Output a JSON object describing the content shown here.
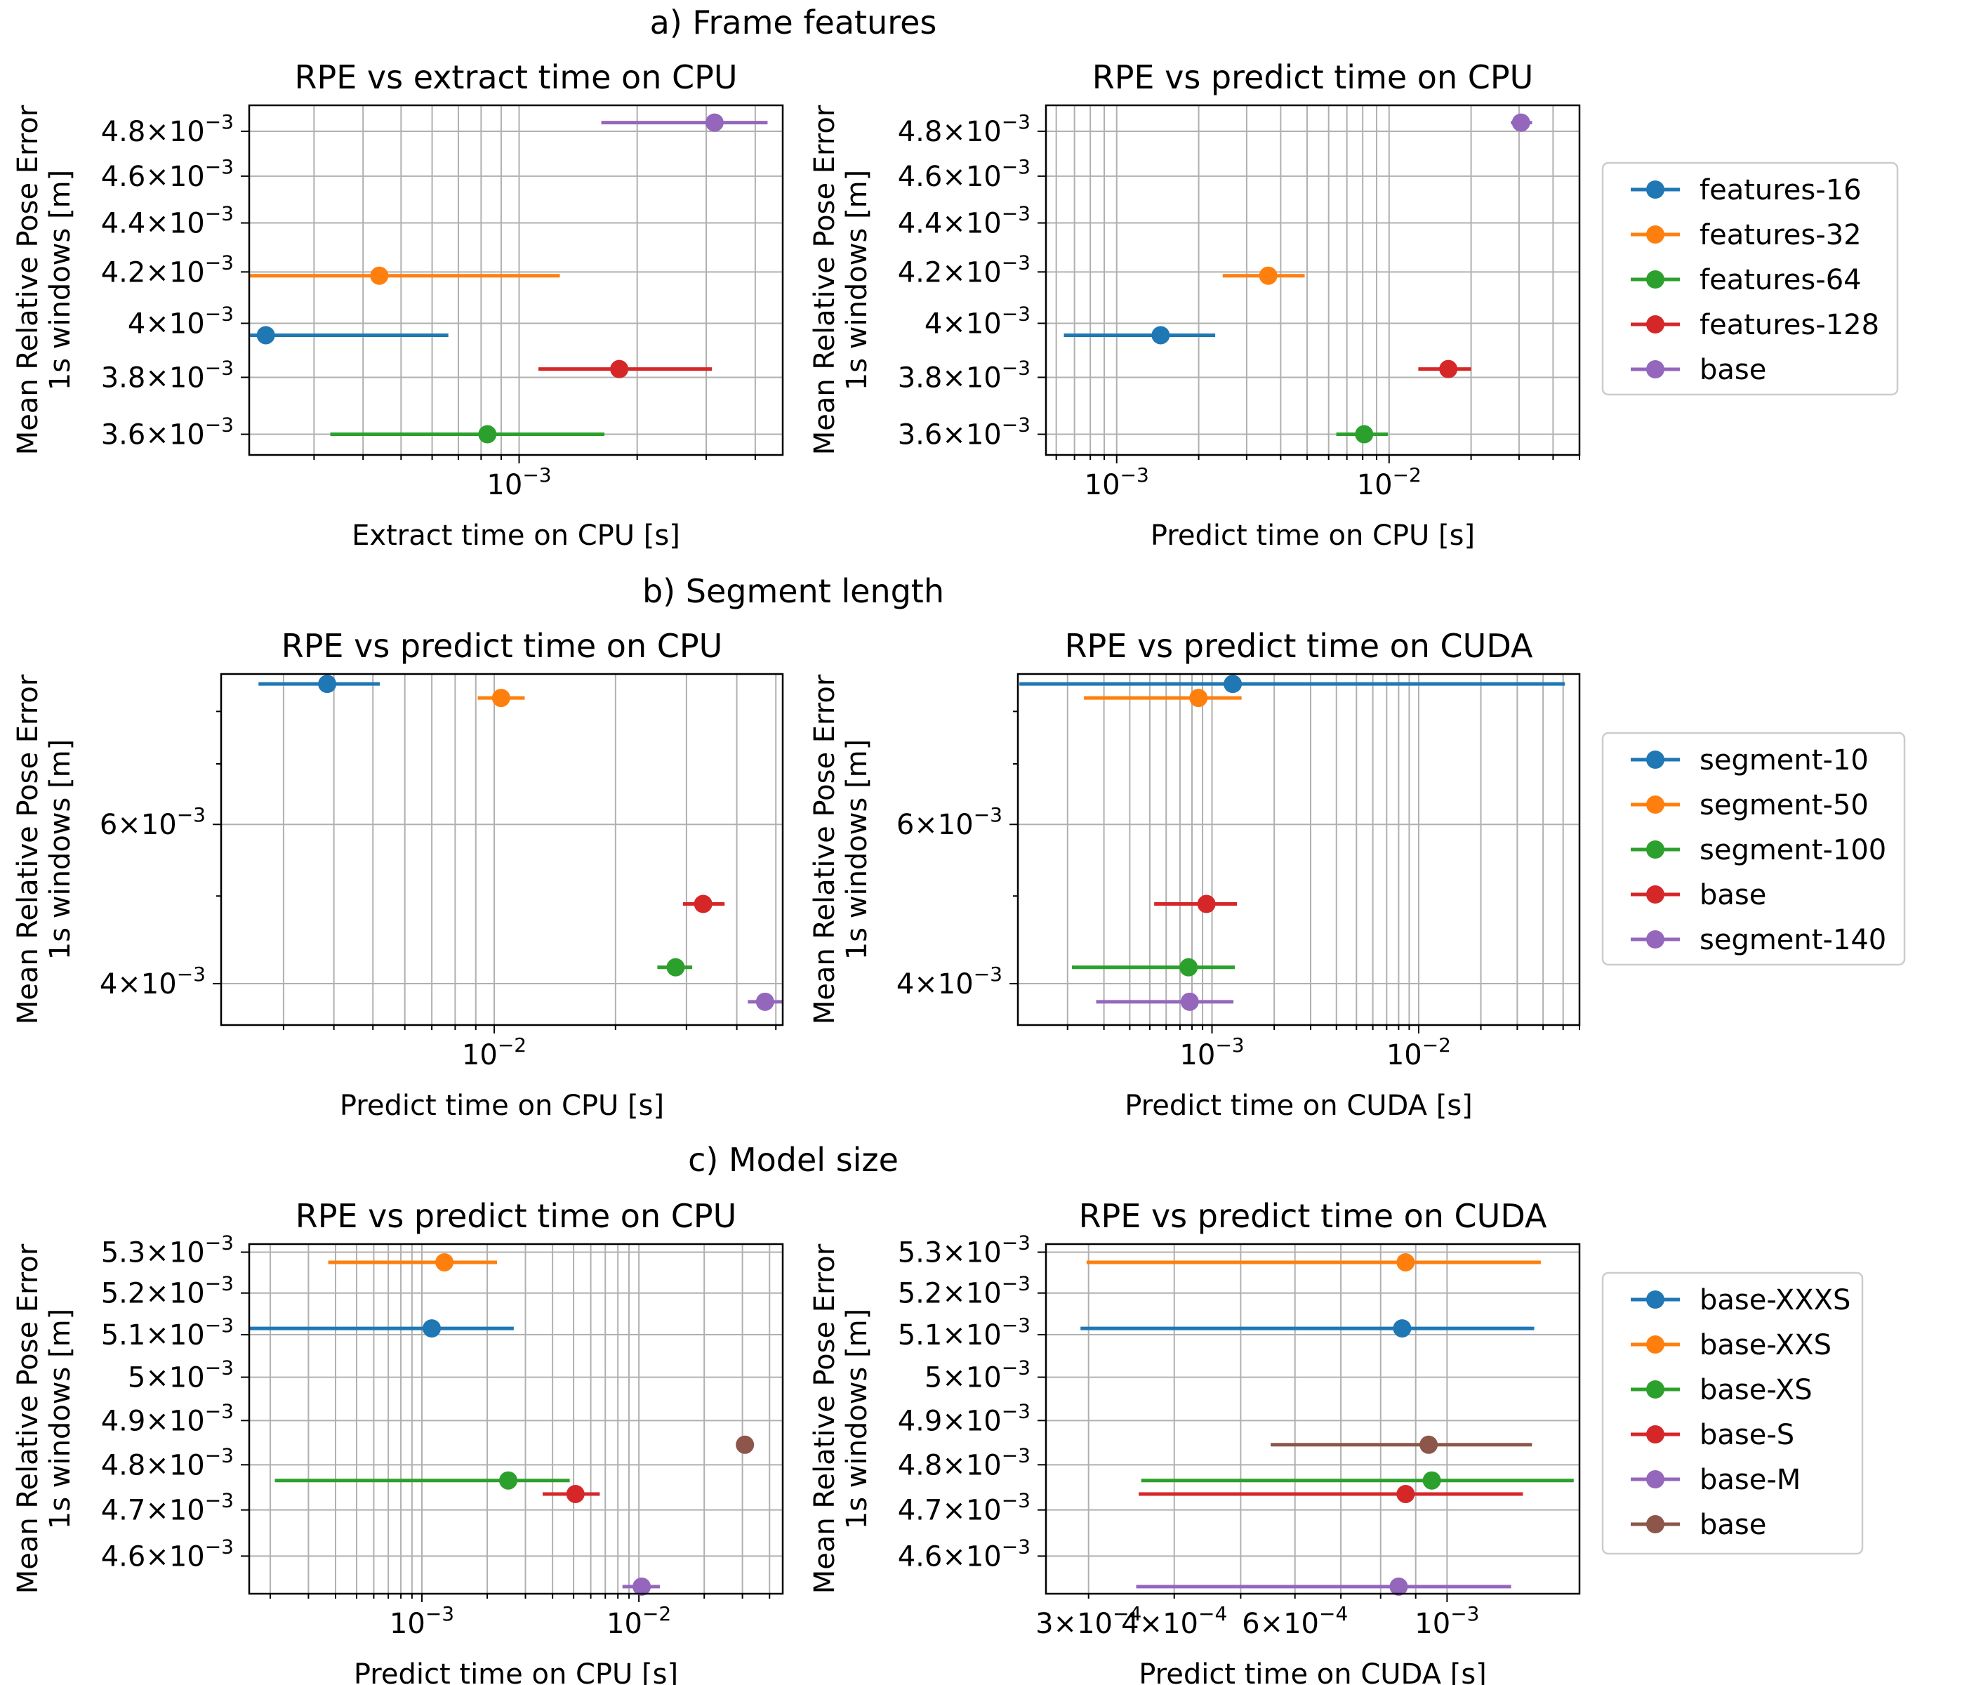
{
  "sections": [
    {
      "title": "a) Frame features"
    },
    {
      "title": "b) Segment length"
    },
    {
      "title": "c) Model size"
    }
  ],
  "colors": {
    "blue": "#1f77b4",
    "orange": "#ff7f0e",
    "green": "#2ca02c",
    "red": "#d62728",
    "purple": "#9467bd",
    "brown": "#8c564b",
    "grid": "#b0b0b0"
  },
  "chart_data": [
    {
      "id": "a1",
      "type": "scatter",
      "title": "RPE vs extract time on CPU",
      "xlabel": "Extract time on CPU [s]",
      "ylabel": [
        "Mean Relative Pose Error",
        "1s windows [m]"
      ],
      "xscale": "log",
      "yscale": "log",
      "xlim": [
        0.000205,
        0.0047
      ],
      "ylim": [
        0.00353,
        0.00492
      ],
      "grid": true,
      "xticks": [
        {
          "value": 0.001,
          "label": "10",
          "exp": "−3"
        }
      ],
      "yticks": [
        {
          "value": 0.0036,
          "label": "3.6×10",
          "exp": "−3"
        },
        {
          "value": 0.0038,
          "label": "3.8×10",
          "exp": "−3"
        },
        {
          "value": 0.004,
          "label": "4×10",
          "exp": "−3"
        },
        {
          "value": 0.0042,
          "label": "4.2×10",
          "exp": "−3"
        },
        {
          "value": 0.0044,
          "label": "4.4×10",
          "exp": "−3"
        },
        {
          "value": 0.0046,
          "label": "4.6×10",
          "exp": "−3"
        },
        {
          "value": 0.0048,
          "label": "4.8×10",
          "exp": "−3"
        }
      ],
      "series": [
        {
          "name": "features-16",
          "color": "#1f77b4",
          "x": 0.000226,
          "xmin": 0.000206,
          "xmax": 0.00066,
          "y": 0.003955
        },
        {
          "name": "features-32",
          "color": "#ff7f0e",
          "x": 0.00044,
          "xmin": 0.000205,
          "xmax": 0.00127,
          "y": 0.004185
        },
        {
          "name": "features-64",
          "color": "#2ca02c",
          "x": 0.00083,
          "xmin": 0.00033,
          "xmax": 0.00165,
          "y": 0.0036
        },
        {
          "name": "features-128",
          "color": "#d62728",
          "x": 0.0018,
          "xmin": 0.00112,
          "xmax": 0.0031,
          "y": 0.00383
        },
        {
          "name": "base",
          "color": "#9467bd",
          "x": 0.00315,
          "xmin": 0.00162,
          "xmax": 0.0043,
          "y": 0.00484
        }
      ]
    },
    {
      "id": "a2",
      "type": "scatter",
      "title": "RPE vs predict time on CPU",
      "xlabel": "Predict time on CPU [s]",
      "ylabel": [
        "Mean Relative Pose Error",
        "1s windows [m]"
      ],
      "xscale": "log",
      "yscale": "log",
      "xlim": [
        0.00055,
        0.05
      ],
      "ylim": [
        0.00353,
        0.00492
      ],
      "grid": true,
      "xticks": [
        {
          "value": 0.001,
          "label": "10",
          "exp": "−3"
        },
        {
          "value": 0.01,
          "label": "10",
          "exp": "−2"
        }
      ],
      "yticks": [
        {
          "value": 0.0036,
          "label": "3.6×10",
          "exp": "−3"
        },
        {
          "value": 0.0038,
          "label": "3.8×10",
          "exp": "−3"
        },
        {
          "value": 0.004,
          "label": "4×10",
          "exp": "−3"
        },
        {
          "value": 0.0042,
          "label": "4.2×10",
          "exp": "−3"
        },
        {
          "value": 0.0044,
          "label": "4.4×10",
          "exp": "−3"
        },
        {
          "value": 0.0046,
          "label": "4.6×10",
          "exp": "−3"
        },
        {
          "value": 0.0048,
          "label": "4.8×10",
          "exp": "−3"
        }
      ],
      "series": [
        {
          "name": "features-16",
          "color": "#1f77b4",
          "x": 0.00145,
          "xmin": 0.00064,
          "xmax": 0.0023,
          "y": 0.003955
        },
        {
          "name": "features-32",
          "color": "#ff7f0e",
          "x": 0.0036,
          "xmin": 0.00245,
          "xmax": 0.0049,
          "y": 0.004185
        },
        {
          "name": "features-64",
          "color": "#2ca02c",
          "x": 0.0081,
          "xmin": 0.0064,
          "xmax": 0.0099,
          "y": 0.0036
        },
        {
          "name": "features-128",
          "color": "#d62728",
          "x": 0.0165,
          "xmin": 0.0128,
          "xmax": 0.02,
          "y": 0.00383
        },
        {
          "name": "base",
          "color": "#9467bd",
          "x": 0.0305,
          "xmin": 0.028,
          "xmax": 0.0335,
          "y": 0.00484
        }
      ]
    },
    {
      "id": "b1",
      "type": "scatter",
      "title": "RPE vs predict time on CPU",
      "xlabel": "Predict time on CPU [s]",
      "ylabel": [
        "Mean Relative Pose Error",
        "1s windows [m]"
      ],
      "xscale": "log",
      "yscale": "log",
      "xlim": [
        0.0021,
        0.052
      ],
      "ylim": [
        0.0036,
        0.0088
      ],
      "grid": true,
      "xticks": [
        {
          "value": 0.01,
          "label": "10",
          "exp": "−2"
        }
      ],
      "yticks": [
        {
          "value": 0.004,
          "label": "4×10",
          "exp": "−3"
        },
        {
          "value": 0.006,
          "label": "6×10",
          "exp": "−3"
        }
      ],
      "series": [
        {
          "name": "segment-10",
          "color": "#1f77b4",
          "x": 0.00385,
          "xmin": 0.0026,
          "xmax": 0.0052,
          "y": 0.00858
        },
        {
          "name": "segment-50",
          "color": "#ff7f0e",
          "x": 0.0104,
          "xmin": 0.0091,
          "xmax": 0.0119,
          "y": 0.00828
        },
        {
          "name": "segment-100",
          "color": "#2ca02c",
          "x": 0.0282,
          "xmin": 0.0254,
          "xmax": 0.031,
          "y": 0.00417
        },
        {
          "name": "base",
          "color": "#d62728",
          "x": 0.033,
          "xmin": 0.0294,
          "xmax": 0.0373,
          "y": 0.0049
        },
        {
          "name": "segment-140",
          "color": "#9467bd",
          "x": 0.047,
          "xmin": 0.0426,
          "xmax": 0.0518,
          "y": 0.00382
        }
      ]
    },
    {
      "id": "b2",
      "type": "scatter",
      "title": "RPE vs predict time on CUDA",
      "xlabel": "Predict time on CUDA [s]",
      "ylabel": [
        "Mean Relative Pose Error",
        "1s windows [m]"
      ],
      "xscale": "log",
      "yscale": "log",
      "xlim": [
        0.000115,
        0.06
      ],
      "ylim": [
        0.0036,
        0.0088
      ],
      "grid": true,
      "xticks": [
        {
          "value": 0.001,
          "label": "10",
          "exp": "−3"
        },
        {
          "value": 0.01,
          "label": "10",
          "exp": "−2"
        }
      ],
      "yticks": [
        {
          "value": 0.004,
          "label": "4×10",
          "exp": "−3"
        },
        {
          "value": 0.006,
          "label": "6×10",
          "exp": "−3"
        }
      ],
      "series": [
        {
          "name": "segment-10",
          "color": "#1f77b4",
          "x": 0.00126,
          "xmin": 0.000117,
          "xmax": 0.051,
          "y": 0.00858
        },
        {
          "name": "segment-50",
          "color": "#ff7f0e",
          "x": 0.00086,
          "xmin": 0.00024,
          "xmax": 0.00139,
          "y": 0.00828
        },
        {
          "name": "segment-100",
          "color": "#2ca02c",
          "x": 0.00077,
          "xmin": 0.00021,
          "xmax": 0.00129,
          "y": 0.00417
        },
        {
          "name": "base",
          "color": "#d62728",
          "x": 0.00094,
          "xmin": 0.000525,
          "xmax": 0.00132,
          "y": 0.0049
        },
        {
          "name": "segment-140",
          "color": "#9467bd",
          "x": 0.00078,
          "xmin": 0.000275,
          "xmax": 0.00127,
          "y": 0.00382
        }
      ]
    },
    {
      "id": "c1",
      "type": "scatter",
      "title": "RPE vs predict time on CPU",
      "xlabel": "Predict time on CPU [s]",
      "ylabel": [
        "Mean Relative Pose Error",
        "1s windows [m]"
      ],
      "xscale": "log",
      "yscale": "log",
      "xlim": [
        0.00016,
        0.046
      ],
      "ylim": [
        0.00452,
        0.00532
      ],
      "grid": true,
      "xticks": [
        {
          "value": 0.001,
          "label": "10",
          "exp": "−3"
        },
        {
          "value": 0.01,
          "label": "10",
          "exp": "−2"
        }
      ],
      "yticks": [
        {
          "value": 0.0046,
          "label": "4.6×10",
          "exp": "−3"
        },
        {
          "value": 0.0047,
          "label": "4.7×10",
          "exp": "−3"
        },
        {
          "value": 0.0048,
          "label": "4.8×10",
          "exp": "−3"
        },
        {
          "value": 0.0049,
          "label": "4.9×10",
          "exp": "−3"
        },
        {
          "value": 0.005,
          "label": "5×10",
          "exp": "−3"
        },
        {
          "value": 0.0051,
          "label": "5.1×10",
          "exp": "−3"
        },
        {
          "value": 0.0052,
          "label": "5.2×10",
          "exp": "−3"
        },
        {
          "value": 0.0053,
          "label": "5.3×10",
          "exp": "−3"
        }
      ],
      "series": [
        {
          "name": "base-XXXS",
          "color": "#1f77b4",
          "x": 0.00111,
          "xmin": 0.00016,
          "xmax": 0.00265,
          "y": 0.005115
        },
        {
          "name": "base-XXS",
          "color": "#ff7f0e",
          "x": 0.00127,
          "xmin": 0.00037,
          "xmax": 0.00222,
          "y": 0.005275
        },
        {
          "name": "base-XS",
          "color": "#2ca02c",
          "x": 0.0025,
          "xmin": 0.00021,
          "xmax": 0.0048,
          "y": 0.004765
        },
        {
          "name": "base-S",
          "color": "#d62728",
          "x": 0.0051,
          "xmin": 0.0036,
          "xmax": 0.0066,
          "y": 0.004735
        },
        {
          "name": "base-M",
          "color": "#9467bd",
          "x": 0.0103,
          "xmin": 0.0084,
          "xmax": 0.0125,
          "y": 0.004535
        },
        {
          "name": "base",
          "color": "#8c564b",
          "x": 0.0308,
          "xmin": 0.0286,
          "xmax": 0.033,
          "y": 0.004845
        }
      ]
    },
    {
      "id": "c2",
      "type": "scatter",
      "title": "RPE vs predict time on CUDA",
      "xlabel": "Predict time on CUDA [s]",
      "ylabel": [
        "Mean Relative Pose Error",
        "1s windows [m]"
      ],
      "xscale": "log",
      "yscale": "log",
      "xlim": [
        0.00026,
        0.00156
      ],
      "ylim": [
        0.00452,
        0.00532
      ],
      "grid": true,
      "xticks": [
        {
          "value": 0.0003,
          "label": "3×10",
          "exp": "−4"
        },
        {
          "value": 0.0004,
          "label": "4×10",
          "exp": "−4"
        },
        {
          "value": 0.0006,
          "label": "6×10",
          "exp": "−4"
        },
        {
          "value": 0.001,
          "label": "10",
          "exp": "−3"
        }
      ],
      "yticks": [
        {
          "value": 0.0046,
          "label": "4.6×10",
          "exp": "−3"
        },
        {
          "value": 0.0047,
          "label": "4.7×10",
          "exp": "−3"
        },
        {
          "value": 0.0048,
          "label": "4.8×10",
          "exp": "−3"
        },
        {
          "value": 0.0049,
          "label": "4.9×10",
          "exp": "−3"
        },
        {
          "value": 0.005,
          "label": "5×10",
          "exp": "−3"
        },
        {
          "value": 0.0051,
          "label": "5.1×10",
          "exp": "−3"
        },
        {
          "value": 0.0052,
          "label": "5.2×10",
          "exp": "−3"
        },
        {
          "value": 0.0053,
          "label": "5.3×10",
          "exp": "−3"
        }
      ],
      "series": [
        {
          "name": "base-XXXS",
          "color": "#1f77b4",
          "x": 0.00086,
          "xmin": 0.000292,
          "xmax": 0.00134,
          "y": 0.005115
        },
        {
          "name": "base-XXS",
          "color": "#ff7f0e",
          "x": 0.00087,
          "xmin": 0.000298,
          "xmax": 0.00137,
          "y": 0.005275
        },
        {
          "name": "base-XS",
          "color": "#2ca02c",
          "x": 0.00095,
          "xmin": 0.000358,
          "xmax": 0.00153,
          "y": 0.004765
        },
        {
          "name": "base-S",
          "color": "#d62728",
          "x": 0.00087,
          "xmin": 0.000355,
          "xmax": 0.00129,
          "y": 0.004735
        },
        {
          "name": "base-M",
          "color": "#9467bd",
          "x": 0.00085,
          "xmin": 0.000352,
          "xmax": 0.00124,
          "y": 0.004535
        },
        {
          "name": "base",
          "color": "#8c564b",
          "x": 0.00094,
          "xmin": 0.000553,
          "xmax": 0.00133,
          "y": 0.004845
        }
      ]
    }
  ]
}
